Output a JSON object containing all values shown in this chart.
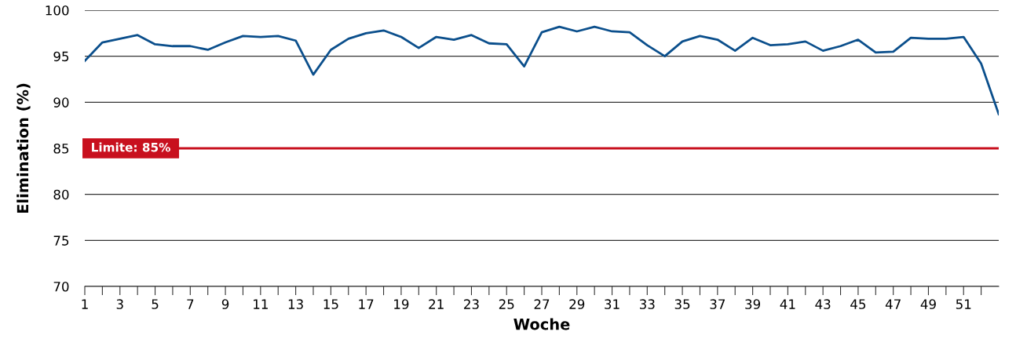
{
  "chart_data": {
    "type": "line",
    "xlabel": "Woche",
    "ylabel": "Elimination (%)",
    "x": [
      1,
      2,
      3,
      4,
      5,
      6,
      7,
      8,
      9,
      10,
      11,
      12,
      13,
      14,
      15,
      16,
      17,
      18,
      19,
      20,
      21,
      22,
      23,
      24,
      25,
      26,
      27,
      28,
      29,
      30,
      31,
      32,
      33,
      34,
      35,
      36,
      37,
      38,
      39,
      40,
      41,
      42,
      43,
      44,
      45,
      46,
      47,
      48,
      49,
      50,
      51,
      52,
      53
    ],
    "series": [
      {
        "color": "#0b4f8c",
        "values": [
          94.5,
          96.5,
          96.9,
          97.3,
          96.3,
          96.1,
          96.1,
          95.7,
          96.5,
          97.2,
          97.1,
          97.2,
          96.7,
          93.0,
          95.7,
          96.9,
          97.5,
          97.8,
          97.1,
          95.9,
          97.1,
          96.8,
          97.3,
          96.4,
          96.3,
          93.9,
          97.6,
          98.2,
          97.7,
          98.2,
          97.7,
          97.6,
          96.2,
          95.0,
          96.6,
          97.2,
          96.8,
          95.6,
          97.0,
          96.2,
          96.3,
          96.6,
          95.6,
          96.1,
          96.8,
          95.4,
          95.5,
          97.0,
          96.9,
          96.9,
          97.1,
          94.2,
          88.7
        ]
      }
    ],
    "xlim": [
      1,
      53
    ],
    "xticks": [
      1,
      {
        "value": 2,
        "label": null
      },
      3,
      {
        "value": 4,
        "label": null
      },
      5,
      {
        "value": 6,
        "label": null
      },
      7,
      {
        "value": 8,
        "label": null
      },
      9,
      {
        "value": 10,
        "label": null
      },
      11,
      {
        "value": 12,
        "label": null
      },
      13,
      {
        "value": 14,
        "label": null
      },
      15,
      {
        "value": 16,
        "label": null
      },
      17,
      {
        "value": 18,
        "label": null
      },
      19,
      {
        "value": 20,
        "label": null
      },
      21,
      {
        "value": 22,
        "label": null
      },
      23,
      {
        "value": 24,
        "label": null
      },
      25,
      {
        "value": 26,
        "label": null
      },
      27,
      {
        "value": 28,
        "label": null
      },
      29,
      {
        "value": 30,
        "label": null
      },
      31,
      {
        "value": 32,
        "label": null
      },
      33,
      {
        "value": 34,
        "label": null
      },
      35,
      {
        "value": 36,
        "label": null
      },
      37,
      {
        "value": 38,
        "label": null
      },
      39,
      {
        "value": 40,
        "label": null
      },
      41,
      {
        "value": 42,
        "label": null
      },
      43,
      {
        "value": 44,
        "label": null
      },
      45,
      {
        "value": 46,
        "label": null
      },
      47,
      {
        "value": 48,
        "label": null
      },
      49,
      {
        "value": 50,
        "label": null
      },
      51,
      {
        "value": 52,
        "label": null
      }
    ],
    "ylim": [
      70,
      100
    ],
    "yticks": [
      70,
      75,
      80,
      85,
      90,
      95,
      100
    ],
    "grid": "y",
    "legend": false,
    "marker": "none",
    "line_style": "solid",
    "ref_lines": [
      {
        "axis": "y",
        "value": 85,
        "label": "Limite: 85%",
        "color": "#c8101e"
      }
    ]
  }
}
